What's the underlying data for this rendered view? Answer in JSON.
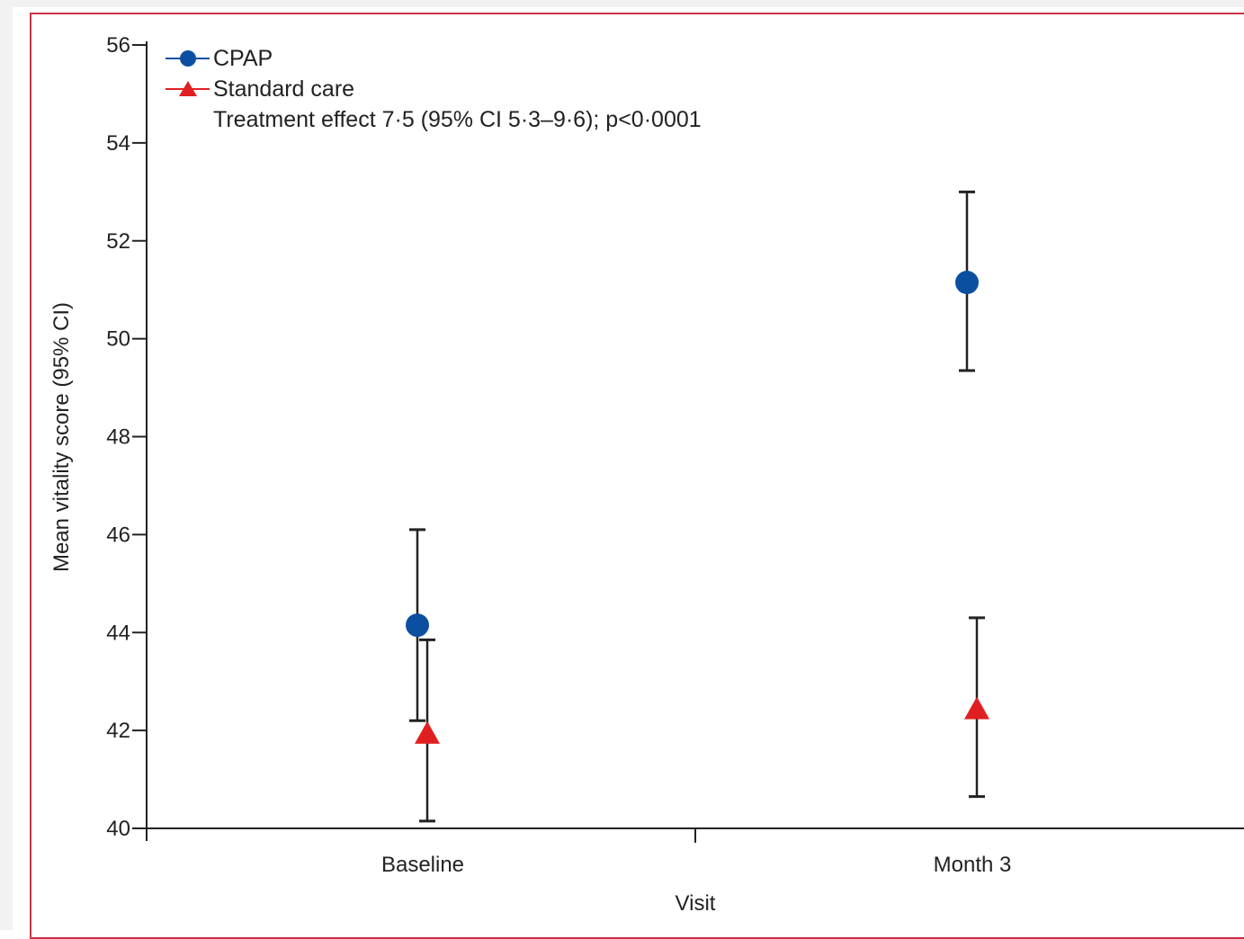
{
  "chart_data": {
    "type": "scatter",
    "categories": [
      "Baseline",
      "Month 3"
    ],
    "xlabel": "Visit",
    "ylabel": "Mean vitality score (95% CI)",
    "ylim": [
      40,
      56
    ],
    "yticks": [
      "40",
      "42",
      "44",
      "46",
      "48",
      "50",
      "52",
      "54",
      "56"
    ],
    "annotation": "Treatment effect 7·5 (95% CI 5·3–9·6); p<0·0001",
    "legend_position": "top-left",
    "grid": false,
    "series": [
      {
        "name": "CPAP",
        "color": "#0b4fa1",
        "marker": "circle",
        "values": [
          44.15,
          51.15
        ],
        "ci_low": [
          42.2,
          49.35
        ],
        "ci_high": [
          46.1,
          53.0
        ]
      },
      {
        "name": "Standard care",
        "color": "#e02020",
        "marker": "triangle",
        "values": [
          41.95,
          42.45
        ],
        "ci_low": [
          40.15,
          40.65
        ],
        "ci_high": [
          43.85,
          44.3
        ]
      }
    ]
  }
}
